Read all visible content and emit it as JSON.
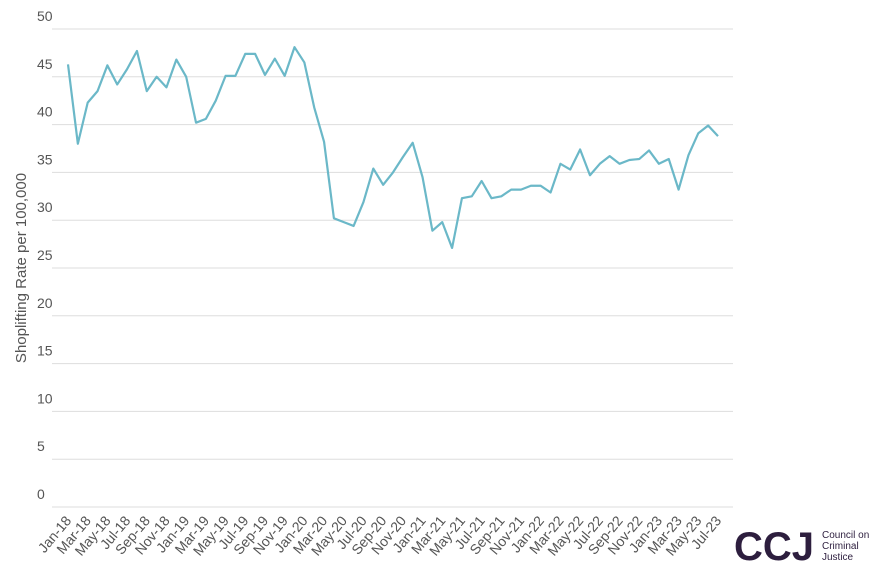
{
  "chart_data": {
    "type": "line",
    "y_label": "Shoplifting Rate per 100,000",
    "categories": [
      "Jan-18",
      null,
      "Mar-18",
      null,
      "May-18",
      null,
      "Jul-18",
      null,
      "Sep-18",
      null,
      "Nov-18",
      null,
      "Jan-19",
      null,
      "Mar-19",
      null,
      "May-19",
      null,
      "Jul-19",
      null,
      "Sep-19",
      null,
      "Nov-19",
      null,
      "Jan-20",
      null,
      "Mar-20",
      null,
      "May-20",
      null,
      "Jul-20",
      null,
      "Sep-20",
      null,
      "Nov-20",
      null,
      "Jan-21",
      null,
      "Mar-21",
      null,
      "May-21",
      null,
      "Jul-21",
      null,
      "Sep-21",
      null,
      "Nov-21",
      null,
      "Jan-22",
      null,
      "Mar-22",
      null,
      "May-22",
      null,
      "Jul-22",
      null,
      "Sep-22",
      null,
      "Nov-22",
      null,
      "Jan-23",
      null,
      "Mar-23",
      null,
      "May-23",
      null,
      "Jul-23"
    ],
    "series": [
      {
        "color": "#6bb8c8",
        "values": [
          46.3,
          38.0,
          42.3,
          43.5,
          46.2,
          44.2,
          45.8,
          47.7,
          43.5,
          45.0,
          43.9,
          46.8,
          45.0,
          40.2,
          40.6,
          42.5,
          45.1,
          45.1,
          47.4,
          47.4,
          45.2,
          46.9,
          45.1,
          48.1,
          46.5,
          41.8,
          38.2,
          30.2,
          29.8,
          29.4,
          31.9,
          35.4,
          33.7,
          35.0,
          36.6,
          38.1,
          34.5,
          28.9,
          29.8,
          27.1,
          32.3,
          32.5,
          34.1,
          32.3,
          32.5,
          33.2,
          33.2,
          33.6,
          33.6,
          32.9,
          35.9,
          35.3,
          37.4,
          34.7,
          35.9,
          36.7,
          35.9,
          36.3,
          36.4,
          37.3,
          35.9,
          36.4,
          33.2,
          36.8,
          39.1,
          39.9,
          38.8
        ]
      }
    ],
    "ylim": [
      0,
      50
    ],
    "yticks": [
      0,
      5,
      10,
      15,
      20,
      25,
      30,
      35,
      40,
      45,
      50
    ],
    "grid": true
  },
  "logo": {
    "mark": "CCJ",
    "lines": [
      "Council on",
      "Criminal",
      "Justice"
    ]
  }
}
